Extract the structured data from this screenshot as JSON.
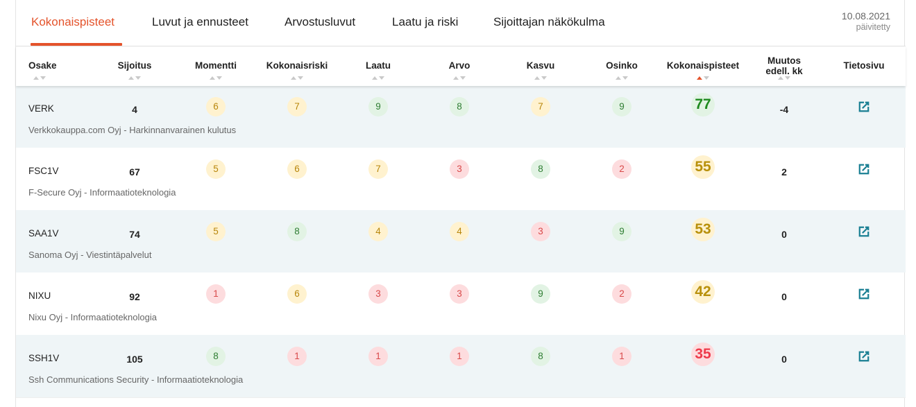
{
  "tabs": [
    {
      "label": "Kokonaispisteet",
      "active": true
    },
    {
      "label": "Luvut ja ennusteet"
    },
    {
      "label": "Arvostusluvut"
    },
    {
      "label": "Laatu ja riski"
    },
    {
      "label": "Sijoittajan näkökulma"
    }
  ],
  "updated": {
    "date": "10.08.2021",
    "label": "päivitetty"
  },
  "columns": {
    "osake": "Osake",
    "sijoitus": "Sijoitus",
    "momentti": "Momentti",
    "kokonaisriski": "Kokonaisriski",
    "laatu": "Laatu",
    "arvo": "Arvo",
    "kasvu": "Kasvu",
    "osinko": "Osinko",
    "kokonaispisteet": "Kokonaispisteet",
    "muutos_line1": "Muutos",
    "muutos_line2": "edell. kk",
    "tietosivu": "Tietosivu"
  },
  "accent_color": "#e4532b",
  "rows": [
    {
      "ticker": "VERK",
      "company": "Verkkokauppa.com Oyj - Harkinnanvarainen kulutus",
      "sijoitus": "4",
      "momentti": "6",
      "kokonaisriski": "7",
      "laatu": "9",
      "arvo": "8",
      "kasvu": "7",
      "osinko": "9",
      "kokonaispisteet": "77",
      "muutos": "-4"
    },
    {
      "ticker": "FSC1V",
      "company": "F-Secure Oyj - Informaatioteknologia",
      "sijoitus": "67",
      "momentti": "5",
      "kokonaisriski": "6",
      "laatu": "7",
      "arvo": "3",
      "kasvu": "8",
      "osinko": "2",
      "kokonaispisteet": "55",
      "muutos": "2"
    },
    {
      "ticker": "SAA1V",
      "company": "Sanoma Oyj - Viestintäpalvelut",
      "sijoitus": "74",
      "momentti": "5",
      "kokonaisriski": "8",
      "laatu": "4",
      "arvo": "4",
      "kasvu": "3",
      "osinko": "9",
      "kokonaispisteet": "53",
      "muutos": "0"
    },
    {
      "ticker": "NIXU",
      "company": "Nixu Oyj - Informaatioteknologia",
      "sijoitus": "92",
      "momentti": "1",
      "kokonaisriski": "6",
      "laatu": "3",
      "arvo": "3",
      "kasvu": "9",
      "osinko": "2",
      "kokonaispisteet": "42",
      "muutos": "0"
    },
    {
      "ticker": "SSH1V",
      "company": "Ssh Communications Security - Informaatioteknologia",
      "sijoitus": "105",
      "momentti": "8",
      "kokonaisriski": "1",
      "laatu": "1",
      "arvo": "1",
      "kasvu": "8",
      "osinko": "1",
      "kokonaispisteet": "35",
      "muutos": "0"
    }
  ],
  "icons": {
    "external_link": "external-link-icon",
    "sort": "sort-arrows-icon"
  }
}
